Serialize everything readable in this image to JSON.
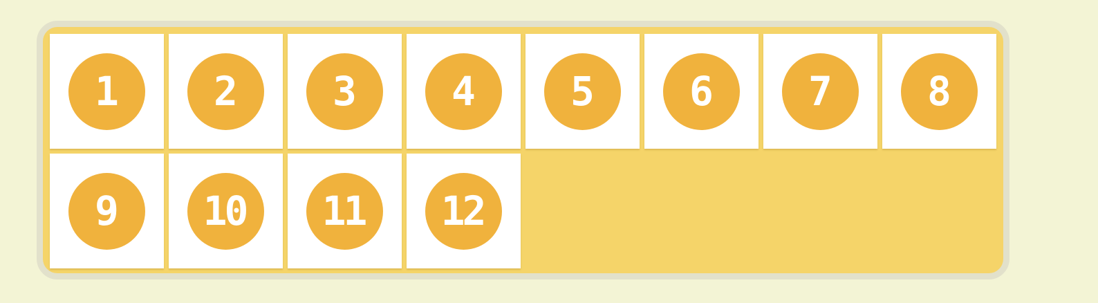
{
  "colors": {
    "page_background": "#f3f4d5",
    "frame_border": "#e2e1cb",
    "frame_fill": "#f5d469",
    "tile_background": "#ffffff",
    "badge_fill": "#f0b23d",
    "badge_text": "#ffffff"
  },
  "tiles": [
    {
      "label": "1"
    },
    {
      "label": "2"
    },
    {
      "label": "3"
    },
    {
      "label": "4"
    },
    {
      "label": "5"
    },
    {
      "label": "6"
    },
    {
      "label": "7"
    },
    {
      "label": "8"
    },
    {
      "label": "9"
    },
    {
      "label": "10"
    },
    {
      "label": "11"
    },
    {
      "label": "12"
    }
  ]
}
